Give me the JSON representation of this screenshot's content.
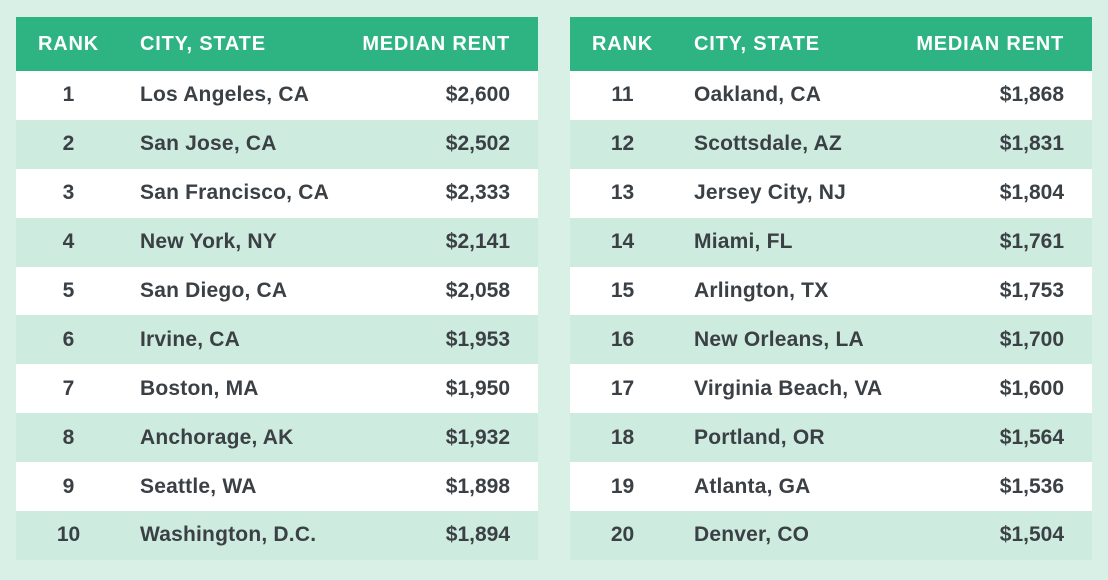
{
  "colors": {
    "page_background": "#D9F0E7",
    "header_background": "#2EB482",
    "header_text": "#FFFFFF",
    "row_background": "#FFFFFF",
    "row_alt_background": "#CDEBDE",
    "cell_text": "#3B4045"
  },
  "tables": [
    {
      "columns": {
        "rank": "RANK",
        "city": "CITY, STATE",
        "rent": "MEDIAN RENT"
      },
      "rows": [
        {
          "rank": "1",
          "city": "Los Angeles, CA",
          "rent": "$2,600"
        },
        {
          "rank": "2",
          "city": "San Jose, CA",
          "rent": "$2,502"
        },
        {
          "rank": "3",
          "city": "San Francisco, CA",
          "rent": "$2,333"
        },
        {
          "rank": "4",
          "city": "New York, NY",
          "rent": "$2,141"
        },
        {
          "rank": "5",
          "city": "San Diego, CA",
          "rent": "$2,058"
        },
        {
          "rank": "6",
          "city": "Irvine, CA",
          "rent": "$1,953"
        },
        {
          "rank": "7",
          "city": "Boston, MA",
          "rent": "$1,950"
        },
        {
          "rank": "8",
          "city": "Anchorage, AK",
          "rent": "$1,932"
        },
        {
          "rank": "9",
          "city": "Seattle, WA",
          "rent": "$1,898"
        },
        {
          "rank": "10",
          "city": "Washington, D.C.",
          "rent": "$1,894"
        }
      ]
    },
    {
      "columns": {
        "rank": "RANK",
        "city": "CITY, STATE",
        "rent": "MEDIAN RENT"
      },
      "rows": [
        {
          "rank": "11",
          "city": "Oakland, CA",
          "rent": "$1,868"
        },
        {
          "rank": "12",
          "city": "Scottsdale, AZ",
          "rent": "$1,831"
        },
        {
          "rank": "13",
          "city": "Jersey City, NJ",
          "rent": "$1,804"
        },
        {
          "rank": "14",
          "city": "Miami, FL",
          "rent": "$1,761"
        },
        {
          "rank": "15",
          "city": "Arlington, TX",
          "rent": "$1,753"
        },
        {
          "rank": "16",
          "city": "New Orleans, LA",
          "rent": "$1,700"
        },
        {
          "rank": "17",
          "city": "Virginia Beach, VA",
          "rent": "$1,600"
        },
        {
          "rank": "18",
          "city": "Portland, OR",
          "rent": "$1,564"
        },
        {
          "rank": "19",
          "city": "Atlanta, GA",
          "rent": "$1,536"
        },
        {
          "rank": "20",
          "city": "Denver, CO",
          "rent": "$1,504"
        }
      ]
    }
  ],
  "chart_data": {
    "type": "table",
    "title": "",
    "columns": [
      "RANK",
      "CITY, STATE",
      "MEDIAN RENT"
    ],
    "rows": [
      [
        1,
        "Los Angeles, CA",
        "$2,600"
      ],
      [
        2,
        "San Jose, CA",
        "$2,502"
      ],
      [
        3,
        "San Francisco, CA",
        "$2,333"
      ],
      [
        4,
        "New York, NY",
        "$2,141"
      ],
      [
        5,
        "San Diego, CA",
        "$2,058"
      ],
      [
        6,
        "Irvine, CA",
        "$1,953"
      ],
      [
        7,
        "Boston, MA",
        "$1,950"
      ],
      [
        8,
        "Anchorage, AK",
        "$1,932"
      ],
      [
        9,
        "Seattle, WA",
        "$1,898"
      ],
      [
        10,
        "Washington, D.C.",
        "$1,894"
      ],
      [
        11,
        "Oakland, CA",
        "$1,868"
      ],
      [
        12,
        "Scottsdale, AZ",
        "$1,831"
      ],
      [
        13,
        "Jersey City, NJ",
        "$1,804"
      ],
      [
        14,
        "Miami, FL",
        "$1,761"
      ],
      [
        15,
        "Arlington, TX",
        "$1,753"
      ],
      [
        16,
        "New Orleans, LA",
        "$1,700"
      ],
      [
        17,
        "Virginia Beach, VA",
        "$1,600"
      ],
      [
        18,
        "Portland, OR",
        "$1,564"
      ],
      [
        19,
        "Atlanta, GA",
        "$1,536"
      ],
      [
        20,
        "Denver, CO",
        "$1,504"
      ]
    ],
    "values_numeric": [
      2600,
      2502,
      2333,
      2141,
      2058,
      1953,
      1950,
      1932,
      1898,
      1894,
      1868,
      1831,
      1804,
      1761,
      1753,
      1700,
      1600,
      1564,
      1536,
      1504
    ],
    "categories": [
      "Los Angeles, CA",
      "San Jose, CA",
      "San Francisco, CA",
      "New York, NY",
      "San Diego, CA",
      "Irvine, CA",
      "Boston, MA",
      "Anchorage, AK",
      "Seattle, WA",
      "Washington, D.C.",
      "Oakland, CA",
      "Scottsdale, AZ",
      "Jersey City, NJ",
      "Miami, FL",
      "Arlington, TX",
      "New Orleans, LA",
      "Virginia Beach, VA",
      "Portland, OR",
      "Atlanta, GA",
      "Denver, CO"
    ]
  }
}
